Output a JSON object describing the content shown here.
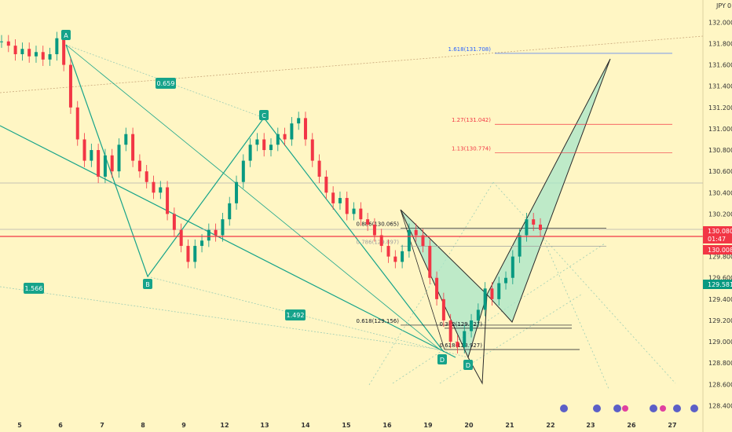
{
  "chart_data": {
    "type": "candlestick",
    "currency_label": "JPY",
    "currency_sub": "0",
    "yticks": [
      "132.000",
      "131.800",
      "131.600",
      "131.400",
      "131.200",
      "131.000",
      "130.800",
      "130.600",
      "130.400",
      "130.200",
      "130.000",
      "129.800",
      "129.600",
      "129.400",
      "129.200",
      "129.000",
      "128.800",
      "128.600",
      "128.400"
    ],
    "ylim": [
      128.3,
      132.15
    ],
    "xticks": [
      "5",
      "6",
      "7",
      "8",
      "9",
      "12",
      "13",
      "14",
      "15",
      "16",
      "19",
      "20",
      "21",
      "22",
      "23",
      "26",
      "27"
    ],
    "price_tags": [
      {
        "label": "130.080",
        "sub": "01:47",
        "value": 130.08,
        "color": "#f23645"
      },
      {
        "label": "130.008",
        "value": 130.008,
        "color": "#f23645"
      },
      {
        "label": "129.581",
        "value": 129.581,
        "color": "#089981"
      }
    ],
    "points": [
      {
        "label": "A",
        "x": 3.1,
        "y": 131.85
      },
      {
        "label": "B",
        "x": 7.6,
        "y": 129.65
      },
      {
        "label": "C",
        "x": 13.0,
        "y": 131.1
      },
      {
        "label": "D",
        "x": 19.8,
        "y": 128.85
      },
      {
        "label": "D",
        "x": 20.4,
        "y": 128.75
      }
    ],
    "ratios": [
      "0.659",
      "1.566",
      "1.492"
    ],
    "fib_levels": [
      {
        "label": "1.618(131.708)",
        "value": 131.708,
        "color": "#2962ff"
      },
      {
        "label": "1.27(131.042)",
        "value": 131.042,
        "color": "#f23645"
      },
      {
        "label": "1.13(130.774)",
        "value": 130.774,
        "color": "#f23645"
      },
      {
        "label": "0.886(130.065)",
        "value": 130.065,
        "color": "#131722"
      },
      {
        "label": "0.786(129.897)",
        "value": 129.897,
        "color": "#9e9e9e"
      },
      {
        "label": "0.618(129.156)",
        "value": 129.156,
        "color": "#131722"
      },
      {
        "label": "0.382(129.127)",
        "value": 129.127,
        "color": "#131722"
      },
      {
        "label": "0.618(128.927)",
        "value": 128.927,
        "color": "#131722"
      }
    ],
    "candles_close": [
      131.82,
      131.78,
      131.7,
      131.75,
      131.68,
      131.72,
      131.65,
      131.7,
      131.85,
      131.6,
      131.2,
      130.9,
      130.7,
      130.8,
      130.55,
      130.75,
      130.6,
      130.85,
      130.95,
      130.7,
      130.6,
      130.5,
      130.4,
      130.45,
      130.2,
      130.05,
      129.9,
      129.75,
      129.9,
      129.95,
      130.05,
      130.0,
      130.15,
      130.3,
      130.5,
      130.7,
      130.85,
      130.9,
      130.8,
      130.85,
      130.95,
      130.9,
      131.05,
      131.1,
      130.9,
      130.7,
      130.55,
      130.4,
      130.3,
      130.35,
      130.2,
      130.25,
      130.15,
      130.1,
      130.0,
      129.9,
      129.8,
      129.75,
      129.85,
      130.05,
      130.0,
      129.9,
      129.6,
      129.4,
      129.2,
      129.0,
      128.95,
      129.1,
      129.2,
      129.3,
      129.5,
      129.4,
      129.55,
      129.6,
      129.8,
      130.0,
      130.15,
      130.1,
      130.05
    ]
  }
}
